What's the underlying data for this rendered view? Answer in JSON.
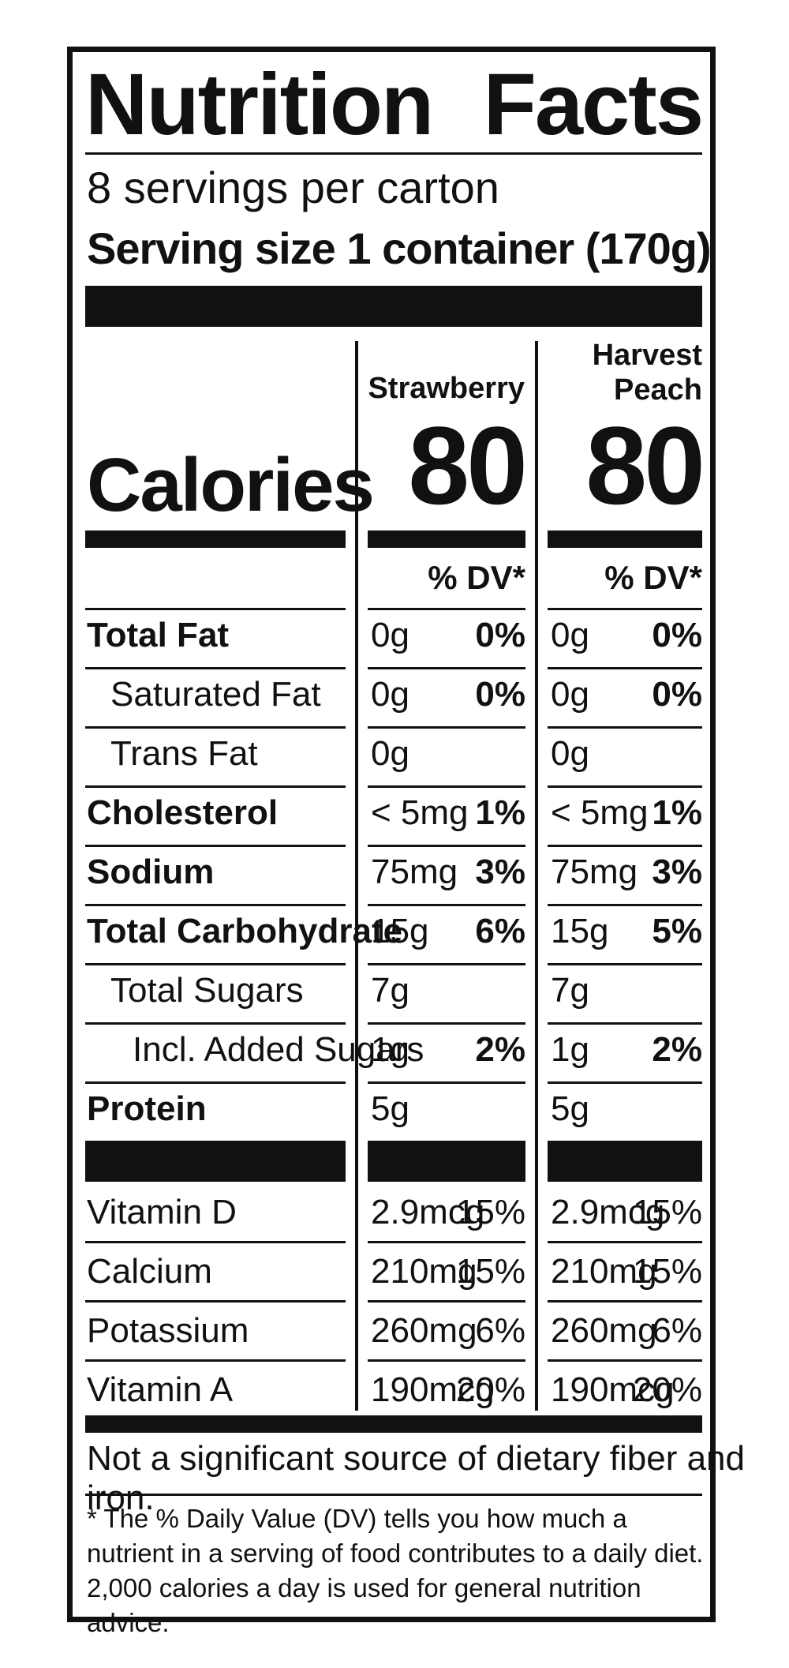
{
  "title_left": "Nutrition",
  "title_right": "Facts",
  "servings": "8 servings per carton",
  "serving_size": "Serving size 1 container (170g)",
  "calories_label": "Calories",
  "columns": [
    {
      "name_line1": "",
      "name_line2": "Strawberry",
      "calories": "80",
      "dv_header": "% DV*"
    },
    {
      "name_line1": "Harvest",
      "name_line2": "Peach",
      "calories": "80",
      "dv_header": "% DV*"
    }
  ],
  "rows": [
    {
      "label": "Total Fat",
      "c1_amt": "0g",
      "c1_pct": "0%",
      "c2_amt": "0g",
      "c2_pct": "0%"
    },
    {
      "label": "Saturated Fat",
      "c1_amt": "0g",
      "c1_pct": "0%",
      "c2_amt": "0g",
      "c2_pct": "0%"
    },
    {
      "label": "Trans Fat",
      "c1_amt": "0g",
      "c1_pct": "",
      "c2_amt": "0g",
      "c2_pct": ""
    },
    {
      "label": "Cholesterol",
      "c1_amt": "< 5mg",
      "c1_pct": "1%",
      "c2_amt": "< 5mg",
      "c2_pct": "1%"
    },
    {
      "label": "Sodium",
      "c1_amt": "75mg",
      "c1_pct": "3%",
      "c2_amt": "75mg",
      "c2_pct": "3%"
    },
    {
      "label": "Total Carbohydrate",
      "c1_amt": "15g",
      "c1_pct": "6%",
      "c2_amt": "15g",
      "c2_pct": "5%"
    },
    {
      "label": "Total Sugars",
      "c1_amt": "7g",
      "c1_pct": "",
      "c2_amt": "7g",
      "c2_pct": ""
    },
    {
      "label": "Incl. Added Sugars",
      "c1_amt": "1g",
      "c1_pct": "2%",
      "c2_amt": "1g",
      "c2_pct": "2%"
    },
    {
      "label": "Protein",
      "c1_amt": "5g",
      "c1_pct": "",
      "c2_amt": "5g",
      "c2_pct": ""
    }
  ],
  "vitamins": [
    {
      "label": "Vitamin D",
      "c1_amt": "2.9mcg",
      "c1_pct": "15%",
      "c2_amt": "2.9mcg",
      "c2_pct": "15%"
    },
    {
      "label": "Calcium",
      "c1_amt": "210mg",
      "c1_pct": "15%",
      "c2_amt": "210mg",
      "c2_pct": "15%"
    },
    {
      "label": "Potassium",
      "c1_amt": "260mg",
      "c1_pct": "6%",
      "c2_amt": "260mg",
      "c2_pct": "6%"
    },
    {
      "label": "Vitamin A",
      "c1_amt": "190mcg",
      "c1_pct": "20%",
      "c2_amt": "190mcg",
      "c2_pct": "20%"
    }
  ],
  "note": "Not a significant source of dietary fiber and iron.",
  "footnote": "* The % Daily Value (DV) tells you how much a nutrient in a serving of food contributes to a daily diet. 2,000 calories a day is used for general nutrition advice."
}
